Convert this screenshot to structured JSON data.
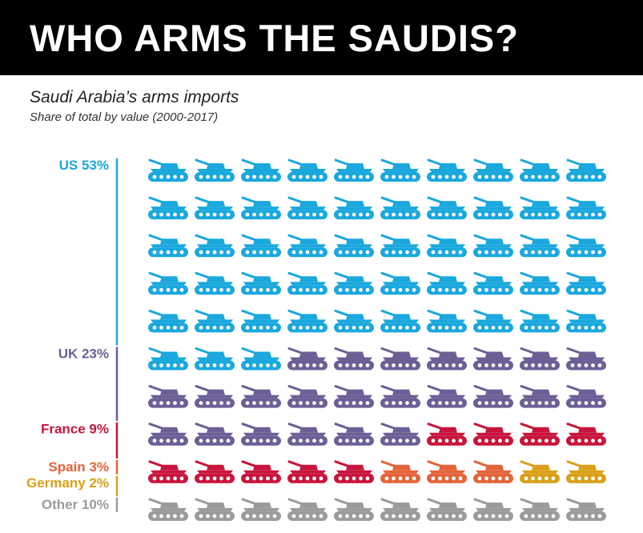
{
  "header": {
    "title": "WHO ARMS THE SAUDIS?",
    "subtitle": "Saudi Arabia’s arms imports",
    "subsubtitle": "Share of total by value (2000-2017)"
  },
  "chart_data": {
    "type": "pictogram",
    "icon": "tank-icon",
    "units_total": 100,
    "grid": {
      "rows": 10,
      "cols": 10
    },
    "series": [
      {
        "name": "US",
        "value": 53,
        "label": "US 53%",
        "color": "#1aa8dd"
      },
      {
        "name": "UK",
        "value": 23,
        "label": "UK 23%",
        "color": "#6c5f96"
      },
      {
        "name": "France",
        "value": 9,
        "label": "France 9%",
        "color": "#c8153c"
      },
      {
        "name": "Spain",
        "value": 3,
        "label": "Spain 3%",
        "color": "#e4643a"
      },
      {
        "name": "Germany",
        "value": 2,
        "label": "Germany 2%",
        "color": "#daa017"
      },
      {
        "name": "Other",
        "value": 10,
        "label": "Other 10%",
        "color": "#9b9b9b"
      }
    ]
  }
}
